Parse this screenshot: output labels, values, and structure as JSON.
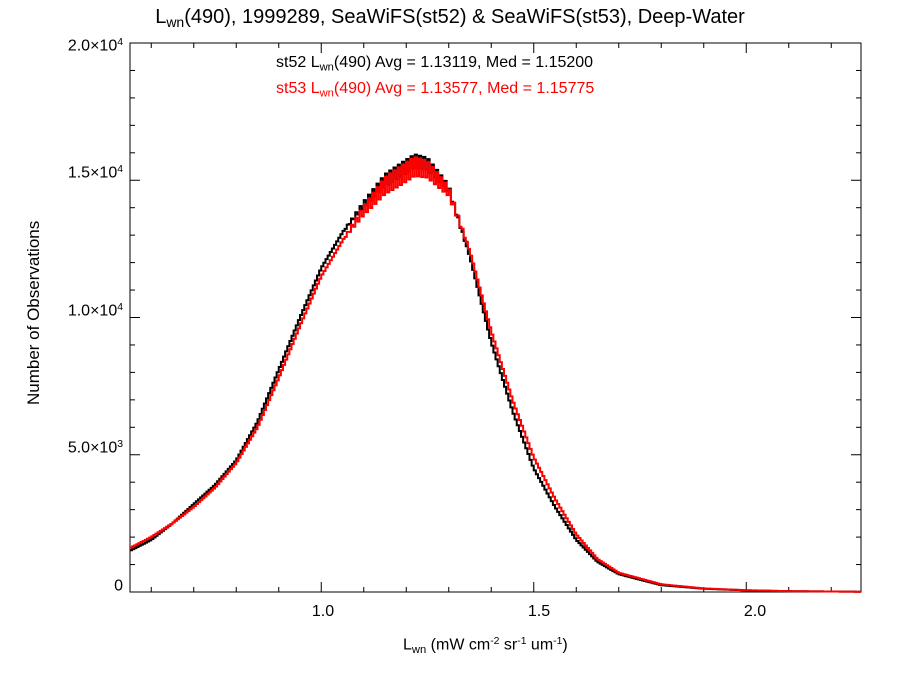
{
  "title": {
    "main": "L",
    "sub": "wn",
    "rest": "(490), 1999289, SeaWiFS(st52) & SeaWiFS(st53), Deep-Water"
  },
  "stats": [
    {
      "pre": "st52 L",
      "sub": "wn",
      "post": "(490) Avg = 1.13119, Med = 1.15200",
      "color": "#000000"
    },
    {
      "pre": "st53 L",
      "sub": "wn",
      "post": "(490) Avg = 1.13577, Med = 1.15775",
      "color": "#ff0000"
    }
  ],
  "y_ticks": [
    {
      "base": "0",
      "exp": ""
    },
    {
      "base": "5.0×10",
      "exp": "3"
    },
    {
      "base": "1.0×10",
      "exp": "4"
    },
    {
      "base": "1.5×10",
      "exp": "4"
    },
    {
      "base": "2.0×10",
      "exp": "4"
    }
  ],
  "x_ticks": [
    "1.0",
    "1.5",
    "2.0"
  ],
  "ylabel": "Number of Observations",
  "xlabel": {
    "pre": "L",
    "sub": "wn",
    "a": " (mW cm",
    "e1": "-2",
    "b": " sr",
    "e2": "-1",
    "c": " um",
    "e3": "-1",
    "d": ")"
  },
  "chart_data": {
    "type": "line",
    "style": "step histogram",
    "xlim": [
      0.55,
      2.27
    ],
    "ylim": [
      0,
      20000
    ],
    "x_ticks": [
      1.0,
      1.5,
      2.0
    ],
    "y_ticks": [
      0,
      5000,
      10000,
      15000,
      20000
    ],
    "grid": false,
    "series": [
      {
        "name": "st52",
        "color": "#000000",
        "x": [
          0.55,
          0.6,
          0.65,
          0.7,
          0.75,
          0.8,
          0.85,
          0.9,
          0.95,
          1.0,
          1.05,
          1.1,
          1.15,
          1.2,
          1.22,
          1.25,
          1.3,
          1.35,
          1.4,
          1.45,
          1.5,
          1.55,
          1.6,
          1.65,
          1.7,
          1.8,
          1.9,
          2.0,
          2.1,
          2.27
        ],
        "y": [
          1500,
          1900,
          2500,
          3200,
          3900,
          4800,
          6200,
          8100,
          10000,
          11800,
          13100,
          14100,
          15000,
          15500,
          15700,
          15600,
          14700,
          12200,
          9100,
          6600,
          4500,
          3100,
          1900,
          1100,
          650,
          250,
          120,
          60,
          30,
          10
        ]
      },
      {
        "name": "st53",
        "color": "#ff0000",
        "x": [
          0.55,
          0.6,
          0.65,
          0.7,
          0.75,
          0.8,
          0.85,
          0.9,
          0.95,
          1.0,
          1.05,
          1.1,
          1.15,
          1.2,
          1.22,
          1.25,
          1.3,
          1.35,
          1.4,
          1.45,
          1.5,
          1.55,
          1.6,
          1.65,
          1.7,
          1.8,
          1.9,
          2.0,
          2.1,
          2.27
        ],
        "y": [
          1600,
          2000,
          2500,
          3100,
          3800,
          4700,
          6000,
          7800,
          9700,
          11500,
          12800,
          13900,
          14800,
          15300,
          15500,
          15400,
          14600,
          12400,
          9500,
          7000,
          4900,
          3400,
          2100,
          1200,
          700,
          280,
          130,
          65,
          30,
          10
        ]
      }
    ]
  }
}
